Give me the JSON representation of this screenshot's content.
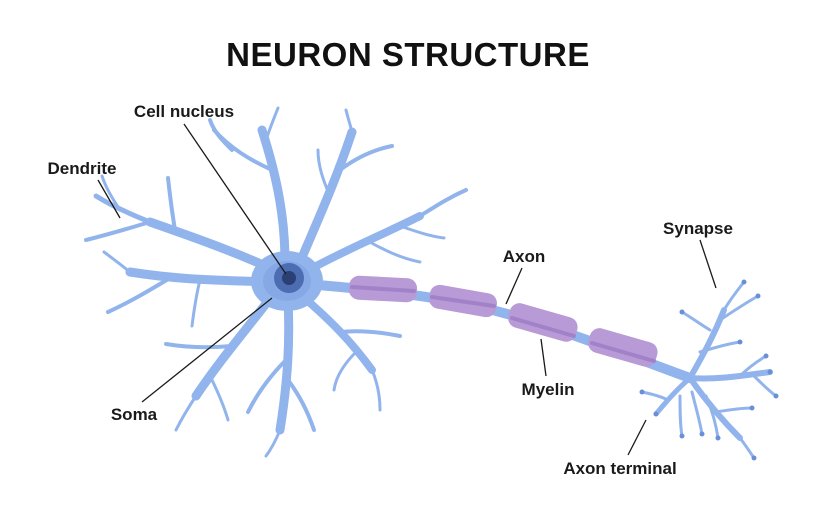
{
  "title": "NEURON STRUCTURE",
  "labels": {
    "cell_nucleus": "Cell nucleus",
    "dendrite": "Dendrite",
    "axon": "Axon",
    "synapse": "Synapse",
    "myelin": "Myelin",
    "soma": "Soma",
    "axon_terminal": "Axon terminal"
  },
  "colors": {
    "neuron": "#92b4ec",
    "neuron_dark": "#6b8fd6",
    "nucleus_outer": "#4d6db3",
    "nucleus_inner": "#2a3f74",
    "myelin": "#b79ad6",
    "myelin_core": "#8f6fbd",
    "text": "#1a1a1a"
  }
}
